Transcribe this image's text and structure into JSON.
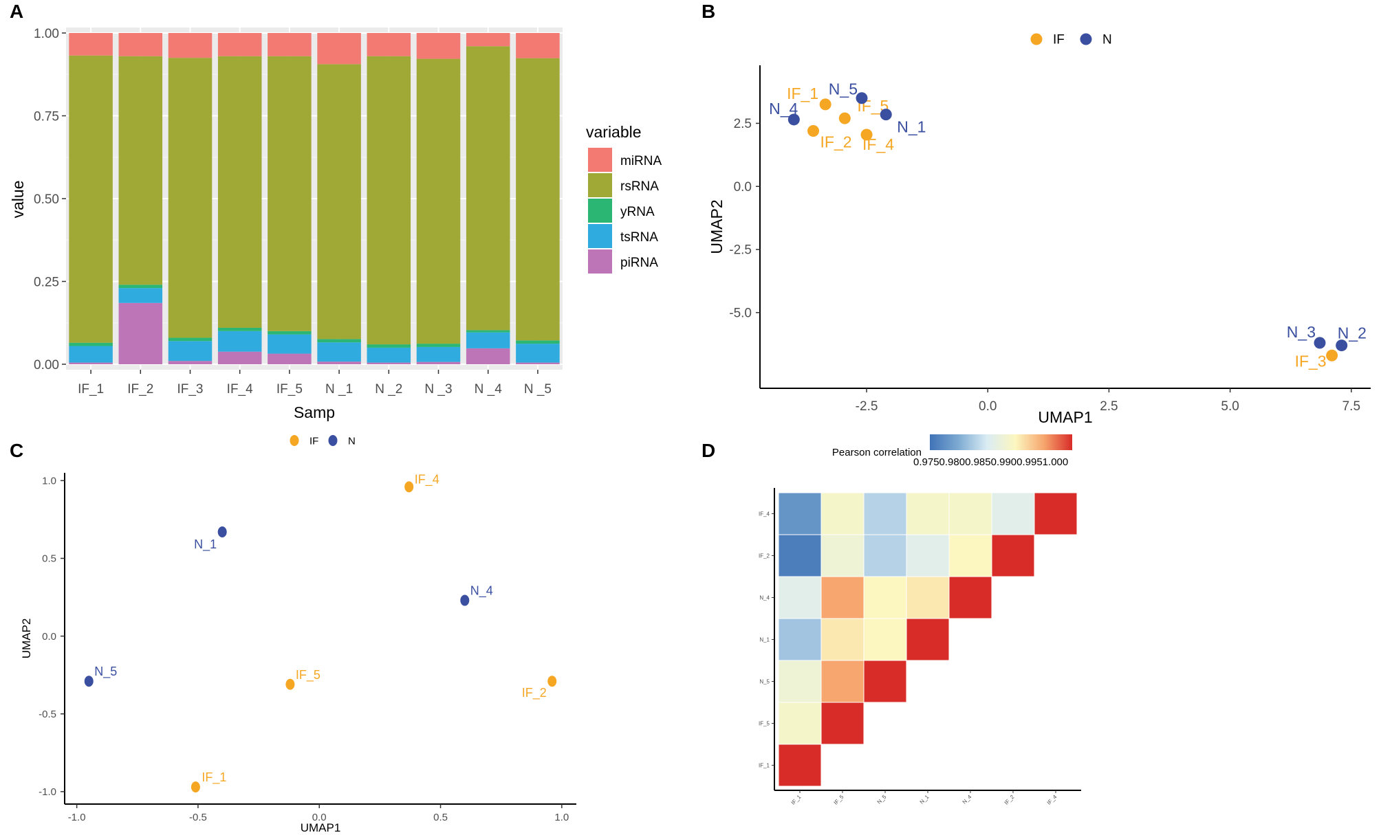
{
  "colors": {
    "IF": "#F5A623",
    "N": "#3A4FA0",
    "miRNA": "#F27A72",
    "rsRNA": "#A0A836",
    "yRNA": "#2BB673",
    "tsRNA": "#2FABE0",
    "piRNA": "#BE75B8",
    "panel_bg": "#EBEBEB"
  },
  "chart_data": [
    {
      "panel": "A",
      "type": "bar",
      "stacked": true,
      "xlabel": "Samp",
      "ylabel": "value",
      "ylim": [
        0,
        1
      ],
      "yticks": [
        "0.00",
        "0.25",
        "0.50",
        "0.75",
        "1.00"
      ],
      "categories": [
        "IF_1",
        "IF_2",
        "IF_3",
        "IF_4",
        "IF_5",
        "N _1",
        "N _2",
        "N _3",
        "N _4",
        "N _5"
      ],
      "legend_title": "variable",
      "legend_order": [
        "miRNA",
        "rsRNA",
        "yRNA",
        "tsRNA",
        "piRNA"
      ],
      "series": [
        {
          "name": "piRNA",
          "values": [
            0.005,
            0.185,
            0.01,
            0.038,
            0.032,
            0.008,
            0.005,
            0.007,
            0.048,
            0.005
          ]
        },
        {
          "name": "tsRNA",
          "values": [
            0.05,
            0.045,
            0.06,
            0.062,
            0.058,
            0.058,
            0.045,
            0.045,
            0.048,
            0.057
          ]
        },
        {
          "name": "yRNA",
          "values": [
            0.01,
            0.01,
            0.01,
            0.01,
            0.01,
            0.01,
            0.01,
            0.01,
            0.007,
            0.01
          ]
        },
        {
          "name": "rsRNA",
          "values": [
            0.867,
            0.69,
            0.845,
            0.82,
            0.83,
            0.83,
            0.87,
            0.86,
            0.857,
            0.852
          ]
        },
        {
          "name": "miRNA",
          "values": [
            0.068,
            0.07,
            0.075,
            0.07,
            0.07,
            0.094,
            0.07,
            0.078,
            0.04,
            0.076
          ]
        }
      ]
    },
    {
      "panel": "B",
      "type": "scatter",
      "xlabel": "UMAP1",
      "ylabel": "UMAP2",
      "xlim": [
        -4.7,
        7.9
      ],
      "ylim": [
        -8.0,
        4.8
      ],
      "xticks": [
        "-2.5",
        "0.0",
        "2.5",
        "5.0",
        "7.5"
      ],
      "yticks": [
        "-5.0",
        "-2.5",
        "0.0",
        "2.5"
      ],
      "legend": [
        "IF",
        "N"
      ],
      "points": [
        {
          "label": "IF_1",
          "group": "IF",
          "x": -3.35,
          "y": 3.25
        },
        {
          "label": "IF_2",
          "group": "IF",
          "x": -3.6,
          "y": 2.2
        },
        {
          "label": "IF_3",
          "group": "IF",
          "x": 7.1,
          "y": -6.7
        },
        {
          "label": "IF_4",
          "group": "IF",
          "x": -2.5,
          "y": 2.05
        },
        {
          "label": "IF_5",
          "group": "IF",
          "x": -2.95,
          "y": 2.7
        },
        {
          "label": "N_1",
          "group": "N",
          "x": -2.1,
          "y": 2.85
        },
        {
          "label": "N_2",
          "group": "N",
          "x": 7.3,
          "y": -6.3
        },
        {
          "label": "N_3",
          "group": "N",
          "x": 6.85,
          "y": -6.2
        },
        {
          "label": "N_4",
          "group": "N",
          "x": -4.0,
          "y": 2.65
        },
        {
          "label": "N_5",
          "group": "N",
          "x": -2.6,
          "y": 3.5
        }
      ]
    },
    {
      "panel": "C",
      "type": "scatter",
      "xlabel": "UMAP1",
      "ylabel": "UMAP2",
      "xlim": [
        -1.05,
        1.06
      ],
      "ylim": [
        -1.08,
        1.05
      ],
      "xticks": [
        "-1.0",
        "-0.5",
        "0.0",
        "0.5",
        "1.0"
      ],
      "yticks": [
        "-1.0",
        "-0.5",
        "0.0",
        "0.5",
        "1.0"
      ],
      "legend": [
        "IF",
        "N"
      ],
      "points": [
        {
          "label": "IF_1",
          "group": "IF",
          "x": -0.51,
          "y": -0.97
        },
        {
          "label": "IF_2",
          "group": "IF",
          "x": 0.96,
          "y": -0.29
        },
        {
          "label": "IF_4",
          "group": "IF",
          "x": 0.37,
          "y": 0.96
        },
        {
          "label": "IF_5",
          "group": "IF",
          "x": -0.12,
          "y": -0.31
        },
        {
          "label": "N_1",
          "group": "N",
          "x": -0.4,
          "y": 0.67
        },
        {
          "label": "N_4",
          "group": "N",
          "x": 0.6,
          "y": 0.23
        },
        {
          "label": "N_5",
          "group": "N",
          "x": -0.95,
          "y": -0.29
        }
      ]
    },
    {
      "panel": "D",
      "type": "heatmap",
      "legend_title": "Pearson correlation",
      "legend_ticks": [
        "0.975",
        "0.980",
        "0.985",
        "0.990",
        "0.995",
        "1.000"
      ],
      "legend_ticks_text": "0.9750.9800.9850.9900.9951.000",
      "range": [
        0.975,
        1.0
      ],
      "x_labels": [
        "IF_1",
        "IF_5",
        "N_5",
        "N_1",
        "N_4",
        "IF_2",
        "IF_4"
      ],
      "y_labels": [
        "IF_1",
        "IF_5",
        "N_5",
        "N_1",
        "N_4",
        "IF_2",
        "IF_4"
      ],
      "matrix": [
        [
          1.0,
          null,
          null,
          null,
          null,
          null,
          null
        ],
        [
          0.989,
          1.0,
          null,
          null,
          null,
          null,
          null
        ],
        [
          0.988,
          0.995,
          1.0,
          null,
          null,
          null,
          null
        ],
        [
          0.982,
          0.991,
          0.99,
          1.0,
          null,
          null,
          null
        ],
        [
          0.986,
          0.995,
          0.99,
          0.991,
          1.0,
          null,
          null
        ],
        [
          0.976,
          0.988,
          0.983,
          0.986,
          0.99,
          1.0,
          null
        ],
        [
          0.978,
          0.989,
          0.983,
          0.989,
          0.989,
          0.986,
          1.0
        ]
      ]
    }
  ]
}
